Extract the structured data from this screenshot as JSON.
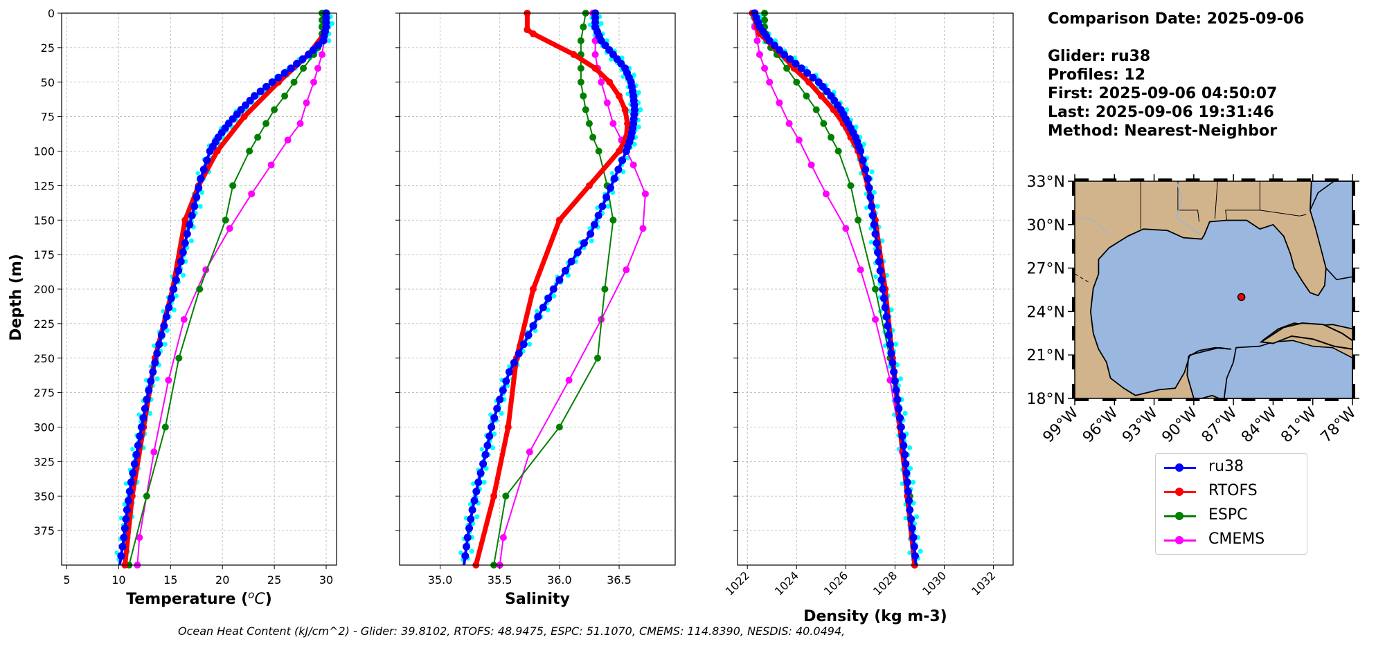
{
  "info": {
    "comparison_date": "Comparison Date: 2025-09-06",
    "glider": "Glider: ru38",
    "profiles": "Profiles: 12",
    "first": "First: 2025-09-06 04:50:07",
    "last": "Last: 2025-09-06 19:31:46",
    "method": "Method: Nearest-Neighbor"
  },
  "footer": "Ocean Heat Content (kJ/cm^2) - Glider: 39.8102,  RTOFS: 48.9475,  ESPC: 51.1070,  CMEMS: 114.8390,  NESDIS: 40.0494,",
  "colors": {
    "ru38": "#0000ff",
    "ru38_raw": "#00ffff",
    "RTOFS": "#ff0000",
    "ESPC": "#008000",
    "CMEMS": "#ff00ff",
    "land": "#d2b48c",
    "ocean": "#9ab7e0"
  },
  "legend": [
    {
      "name": "ru38",
      "color": "#0000ff"
    },
    {
      "name": "RTOFS",
      "color": "#ff0000"
    },
    {
      "name": "ESPC",
      "color": "#008000"
    },
    {
      "name": "CMEMS",
      "color": "#ff00ff"
    }
  ],
  "chart_data": [
    {
      "type": "line",
      "xlabel": "Temperature (°C)",
      "ylabel": "Depth (m)",
      "xlim": [
        4.5,
        31
      ],
      "xticks": [
        5,
        10,
        15,
        20,
        25,
        30
      ],
      "ylim": [
        400,
        0
      ],
      "yticks": [
        0,
        25,
        50,
        75,
        100,
        125,
        150,
        175,
        200,
        225,
        250,
        275,
        300,
        325,
        350,
        375
      ],
      "grid": true,
      "series": [
        {
          "name": "ru38",
          "depth": [
            0,
            10,
            20,
            30,
            40,
            50,
            60,
            70,
            80,
            90,
            100,
            120,
            140,
            160,
            180,
            200,
            220,
            240,
            260,
            280,
            300,
            320,
            340,
            360,
            380,
            400
          ],
          "values": [
            30.0,
            30.0,
            29.7,
            28.3,
            26.6,
            24.8,
            23.1,
            21.8,
            20.6,
            19.6,
            18.8,
            17.9,
            17.3,
            16.6,
            16.0,
            15.3,
            14.6,
            13.9,
            13.3,
            12.7,
            12.2,
            11.7,
            11.2,
            10.8,
            10.5,
            10.1
          ]
        },
        {
          "name": "RTOFS",
          "depth": [
            0,
            15,
            30,
            50,
            75,
            100,
            125,
            150,
            200,
            250,
            300,
            350,
            400
          ],
          "values": [
            30.0,
            29.8,
            28.3,
            25.4,
            22.1,
            19.5,
            17.7,
            16.4,
            15.2,
            13.5,
            12.4,
            11.3,
            10.6
          ]
        },
        {
          "name": "ESPC",
          "depth": [
            0,
            5,
            10,
            15,
            20,
            25,
            30,
            40,
            50,
            60,
            70,
            80,
            90,
            100,
            125,
            150,
            200,
            250,
            300,
            350,
            400
          ],
          "values": [
            29.6,
            29.6,
            29.6,
            29.6,
            29.5,
            29.2,
            28.8,
            27.8,
            26.9,
            26.0,
            25.0,
            24.2,
            23.4,
            22.6,
            21.0,
            20.3,
            17.8,
            15.8,
            14.5,
            12.7,
            11.0
          ]
        },
        {
          "name": "CMEMS",
          "depth": [
            0,
            10,
            20,
            30,
            40,
            50,
            65,
            80,
            92,
            110,
            131,
            156,
            186,
            222,
            266,
            318,
            380,
            400
          ],
          "values": [
            29.9,
            29.9,
            29.8,
            29.6,
            29.2,
            28.8,
            28.1,
            27.5,
            26.3,
            24.7,
            22.8,
            20.7,
            18.4,
            16.3,
            14.8,
            13.4,
            12.0,
            11.8
          ]
        }
      ]
    },
    {
      "type": "line",
      "xlabel": "Salinity",
      "xlim": [
        34.66,
        36.97
      ],
      "xticks": [
        35.0,
        35.5,
        36.0,
        36.5
      ],
      "ylim": [
        400,
        0
      ],
      "grid": true,
      "series": [
        {
          "name": "ru38",
          "depth": [
            0,
            10,
            20,
            30,
            40,
            50,
            60,
            70,
            80,
            90,
            100,
            120,
            140,
            160,
            180,
            200,
            220,
            240,
            260,
            280,
            300,
            320,
            340,
            360,
            380,
            400
          ],
          "values": [
            36.3,
            36.3,
            36.35,
            36.45,
            36.55,
            36.6,
            36.62,
            36.63,
            36.62,
            36.6,
            36.56,
            36.46,
            36.36,
            36.26,
            36.1,
            35.95,
            35.82,
            35.7,
            35.58,
            35.5,
            35.43,
            35.38,
            35.32,
            35.27,
            35.23,
            35.2
          ]
        },
        {
          "name": "RTOFS",
          "depth": [
            0,
            12,
            15,
            30,
            40,
            50,
            60,
            70,
            80,
            90,
            100,
            125,
            150,
            200,
            250,
            300,
            350,
            400
          ],
          "values": [
            35.73,
            35.73,
            35.78,
            36.12,
            36.3,
            36.42,
            36.5,
            36.55,
            36.57,
            36.56,
            36.5,
            36.25,
            36.0,
            35.78,
            35.64,
            35.57,
            35.45,
            35.3
          ]
        },
        {
          "name": "ESPC",
          "depth": [
            0,
            10,
            20,
            30,
            40,
            50,
            60,
            70,
            80,
            90,
            100,
            125,
            150,
            200,
            250,
            300,
            350,
            400
          ],
          "values": [
            36.22,
            36.2,
            36.18,
            36.18,
            36.18,
            36.18,
            36.2,
            36.22,
            36.25,
            36.28,
            36.33,
            36.4,
            36.45,
            36.38,
            36.32,
            36.0,
            35.55,
            35.45
          ]
        },
        {
          "name": "CMEMS",
          "depth": [
            0,
            10,
            20,
            30,
            40,
            50,
            65,
            80,
            92,
            110,
            131,
            156,
            186,
            222,
            266,
            318,
            380,
            400
          ],
          "values": [
            36.28,
            36.3,
            36.3,
            36.3,
            36.32,
            36.35,
            36.4,
            36.45,
            36.52,
            36.62,
            36.72,
            36.7,
            36.56,
            36.35,
            36.08,
            35.75,
            35.53,
            35.5
          ]
        }
      ]
    },
    {
      "type": "line",
      "xlabel": "Density (kg m-3)",
      "xlim": [
        1021.6,
        1032.8
      ],
      "xticks": [
        1022,
        1024,
        1026,
        1028,
        1030,
        1032
      ],
      "ylim": [
        400,
        0
      ],
      "grid": true,
      "series": [
        {
          "name": "ru38",
          "depth": [
            0,
            10,
            20,
            30,
            40,
            50,
            60,
            70,
            80,
            90,
            100,
            120,
            140,
            160,
            180,
            200,
            220,
            240,
            260,
            280,
            300,
            320,
            340,
            360,
            380,
            400
          ],
          "values": [
            1022.3,
            1022.5,
            1022.9,
            1023.5,
            1024.2,
            1024.9,
            1025.4,
            1025.8,
            1026.1,
            1026.4,
            1026.6,
            1026.9,
            1027.05,
            1027.2,
            1027.35,
            1027.5,
            1027.65,
            1027.8,
            1027.95,
            1028.1,
            1028.25,
            1028.4,
            1028.5,
            1028.6,
            1028.75,
            1028.85
          ]
        },
        {
          "name": "RTOFS",
          "depth": [
            0,
            10,
            15,
            30,
            40,
            50,
            60,
            70,
            80,
            90,
            100,
            125,
            150,
            200,
            250,
            300,
            350,
            400
          ],
          "values": [
            1022.2,
            1022.4,
            1022.5,
            1023.4,
            1023.9,
            1024.5,
            1025.0,
            1025.5,
            1025.9,
            1026.2,
            1026.5,
            1026.9,
            1027.2,
            1027.6,
            1027.9,
            1028.2,
            1028.5,
            1028.8
          ]
        },
        {
          "name": "ESPC",
          "depth": [
            0,
            5,
            10,
            15,
            20,
            25,
            30,
            40,
            50,
            60,
            70,
            80,
            90,
            100,
            125,
            150,
            200,
            250,
            300,
            350,
            400
          ],
          "values": [
            1022.7,
            1022.7,
            1022.7,
            1022.75,
            1022.8,
            1022.95,
            1023.2,
            1023.6,
            1024.0,
            1024.4,
            1024.8,
            1025.1,
            1025.4,
            1025.7,
            1026.2,
            1026.5,
            1027.2,
            1027.8,
            1028.2,
            1028.6,
            1028.8
          ]
        },
        {
          "name": "CMEMS",
          "depth": [
            0,
            10,
            20,
            30,
            40,
            50,
            65,
            80,
            92,
            110,
            131,
            156,
            186,
            222,
            266,
            318,
            380,
            400
          ],
          "values": [
            1022.3,
            1022.3,
            1022.4,
            1022.5,
            1022.7,
            1022.9,
            1023.3,
            1023.7,
            1024.1,
            1024.6,
            1025.2,
            1026.0,
            1026.6,
            1027.2,
            1027.8,
            1028.3,
            1028.7,
            1028.8
          ]
        }
      ]
    }
  ],
  "map": {
    "lat_ticks": [
      "33°N",
      "30°N",
      "27°N",
      "24°N",
      "21°N",
      "18°N"
    ],
    "lon_ticks": [
      "99°W",
      "96°W",
      "93°W",
      "90°W",
      "87°W",
      "84°W",
      "81°W",
      "78°W"
    ],
    "lat_range": [
      18,
      33
    ],
    "lon_range": [
      -99,
      -78
    ],
    "glider_position": {
      "lon": -86.4,
      "lat": 25.0
    }
  }
}
